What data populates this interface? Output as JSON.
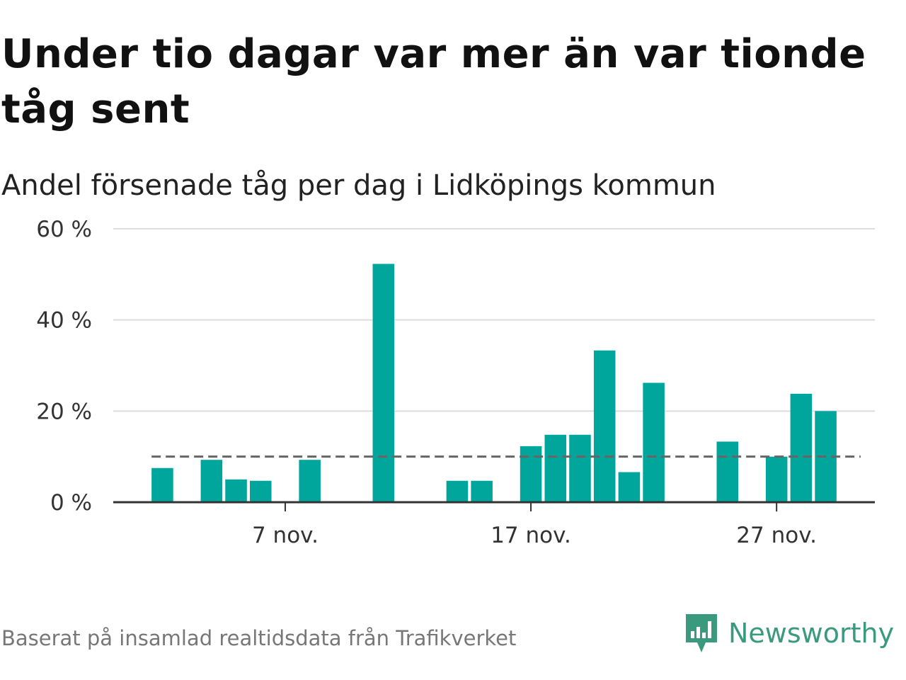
{
  "title": "Under tio dagar var mer än var tionde tåg sent",
  "subtitle": "Andel försenade tåg per dag i Lidköpings kommun",
  "footer": "Baserat på insamlad realtidsdata från Trafikverket",
  "brand": {
    "name": "Newsworthy",
    "icon": "newsworthy-logo-icon",
    "color": "#3a9a7e"
  },
  "chart_data": {
    "type": "bar",
    "title": "Under tio dagar var mer än var tionde tåg sent",
    "subtitle": "Andel försenade tåg per dag i Lidköpings kommun",
    "x_unit": "day of November",
    "x": [
      2,
      4,
      5,
      6,
      8,
      11,
      14,
      15,
      17,
      18,
      19,
      20,
      21,
      22,
      25,
      27,
      28,
      29
    ],
    "values": [
      7.5,
      9.3,
      5.0,
      4.7,
      9.3,
      52.3,
      4.7,
      4.7,
      12.3,
      14.8,
      14.8,
      33.3,
      6.6,
      26.2,
      13.3,
      10.0,
      23.8,
      20.0
    ],
    "xlim": [
      0,
      31
    ],
    "ylim": [
      0,
      60
    ],
    "y_ticks": [
      0,
      20,
      40,
      60
    ],
    "y_tick_labels": [
      "0 %",
      "20 %",
      "40 %",
      "60 %"
    ],
    "x_ticks": [
      7,
      17,
      27
    ],
    "x_tick_labels": [
      "7 nov.",
      "17 nov.",
      "27 nov."
    ],
    "reference_line": {
      "value": 10,
      "style": "dashed",
      "color": "#666666"
    },
    "bar_color": "#00a69c",
    "grid": true,
    "legend": "none"
  }
}
